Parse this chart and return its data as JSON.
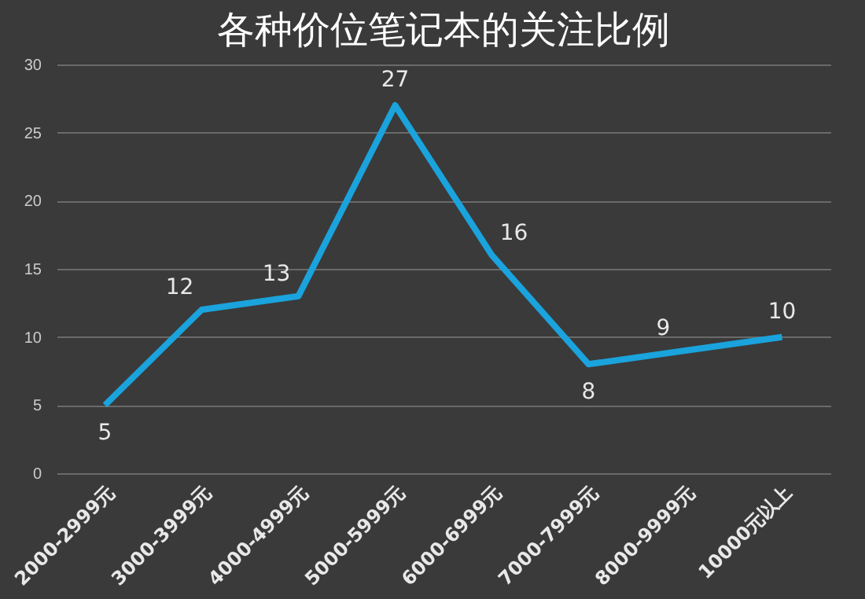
{
  "chart_data": {
    "type": "line",
    "title": "各种价位笔记本的关注比例",
    "categories": [
      "2000-2999元",
      "3000-3999元",
      "4000-4999元",
      "5000-5999元",
      "6000-6999元",
      "7000-7999元",
      "8000-9999元",
      "10000元以上"
    ],
    "series": [
      {
        "color": "#1aa3dc",
        "values": [
          5,
          12,
          13,
          27,
          16,
          8,
          9,
          10
        ]
      }
    ],
    "ylim": [
      0,
      30
    ],
    "yticks": [
      0,
      5,
      10,
      15,
      20,
      25,
      30
    ],
    "grid": "y",
    "marker": "none",
    "line_style": "solid",
    "data_labels": true
  }
}
